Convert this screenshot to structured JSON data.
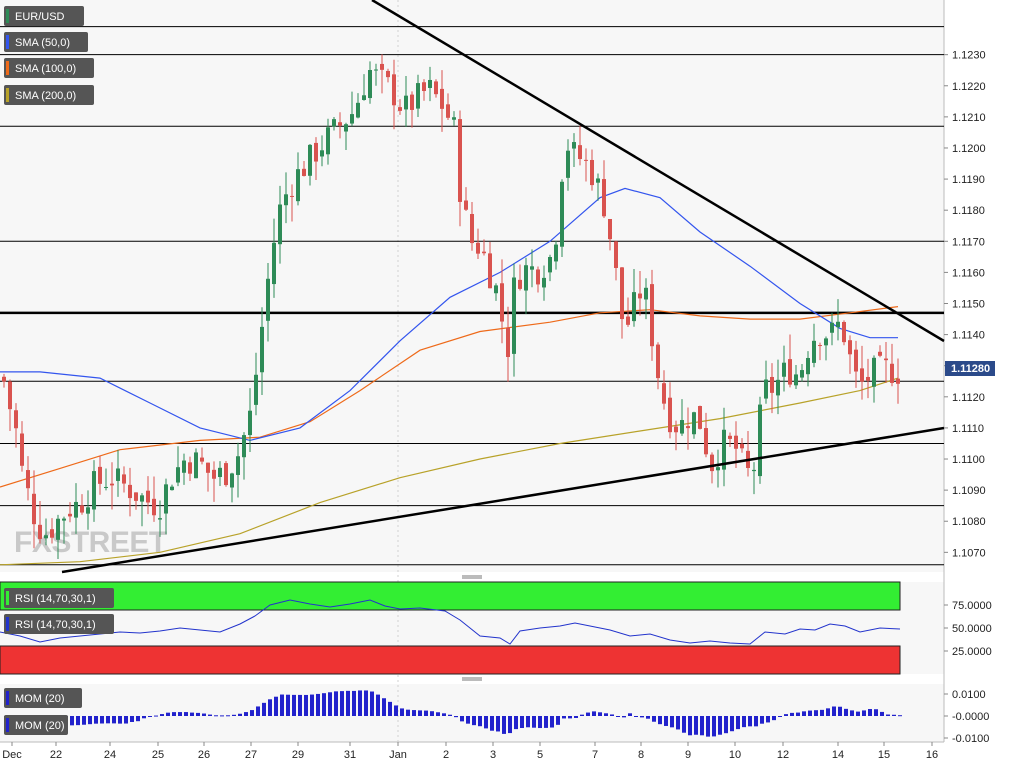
{
  "chart_data": [
    {
      "type": "candlestick",
      "title": "EUR/USD",
      "watermark": "FXSTREET",
      "ylim": [
        1.1065,
        1.124
      ],
      "yticks": [
        "1.1230",
        "1.1220",
        "1.1210",
        "1.1200",
        "1.1190",
        "1.1180",
        "1.1170",
        "1.1160",
        "1.1150",
        "1.1140",
        "1.1130",
        "1.1120",
        "1.1110",
        "1.1100",
        "1.1090",
        "1.1080",
        "1.1070"
      ],
      "xticks": [
        "Dec",
        "22",
        "24",
        "25",
        "26",
        "27",
        "29",
        "31",
        "Jan",
        "2",
        "3",
        "5",
        "7",
        "8",
        "9",
        "10",
        "12",
        "14",
        "15",
        "16"
      ],
      "last_price": "1.11280",
      "legend": [
        {
          "label": "EUR/USD",
          "color": "#2e8b57"
        },
        {
          "label": "SMA (50,0)",
          "color": "#3355ee"
        },
        {
          "label": "SMA (100,0)",
          "color": "#ee6a1a"
        },
        {
          "label": "SMA (200,0)",
          "color": "#b8a229"
        }
      ],
      "horizontal_levels": [
        1.1239,
        1.123,
        1.1207,
        1.117,
        1.1147,
        1.1125,
        1.1105,
        1.1085,
        1.1066
      ],
      "bold_level": 1.1147,
      "trendlines": [
        {
          "name": "descending-resistance",
          "from": [
            31.8,
            1.1245
          ],
          "to": [
            17.3,
            1.1137
          ]
        },
        {
          "name": "ascending-support",
          "from": [
            22.3,
            1.1066
          ],
          "to": [
            17.3,
            1.1109
          ]
        }
      ],
      "colors": {
        "up": "#2e8b57",
        "down": "#d9534f",
        "sma50": "#3355ee",
        "sma100": "#ee6a1a",
        "sma200": "#b8a229"
      }
    },
    {
      "type": "line",
      "title": "RSI (14,70,30,1)",
      "legend": [
        "RSI (14,70,30,1)",
        "RSI (14,70,30,1)"
      ],
      "yticks": [
        "75.0000",
        "50.0000",
        "25.0000"
      ],
      "overbought": 70,
      "oversold": 30,
      "colors": {
        "overbought_band": "#33ee33",
        "oversold_band": "#ee3333",
        "line": "#2233cc"
      }
    },
    {
      "type": "bar",
      "title": "MOM (20)",
      "legend": [
        "MOM (20)",
        "MOM (20)"
      ],
      "yticks": [
        "0.0100",
        "-0.0000",
        "-0.0100"
      ],
      "colors": {
        "bar": "#2222cc"
      }
    }
  ]
}
